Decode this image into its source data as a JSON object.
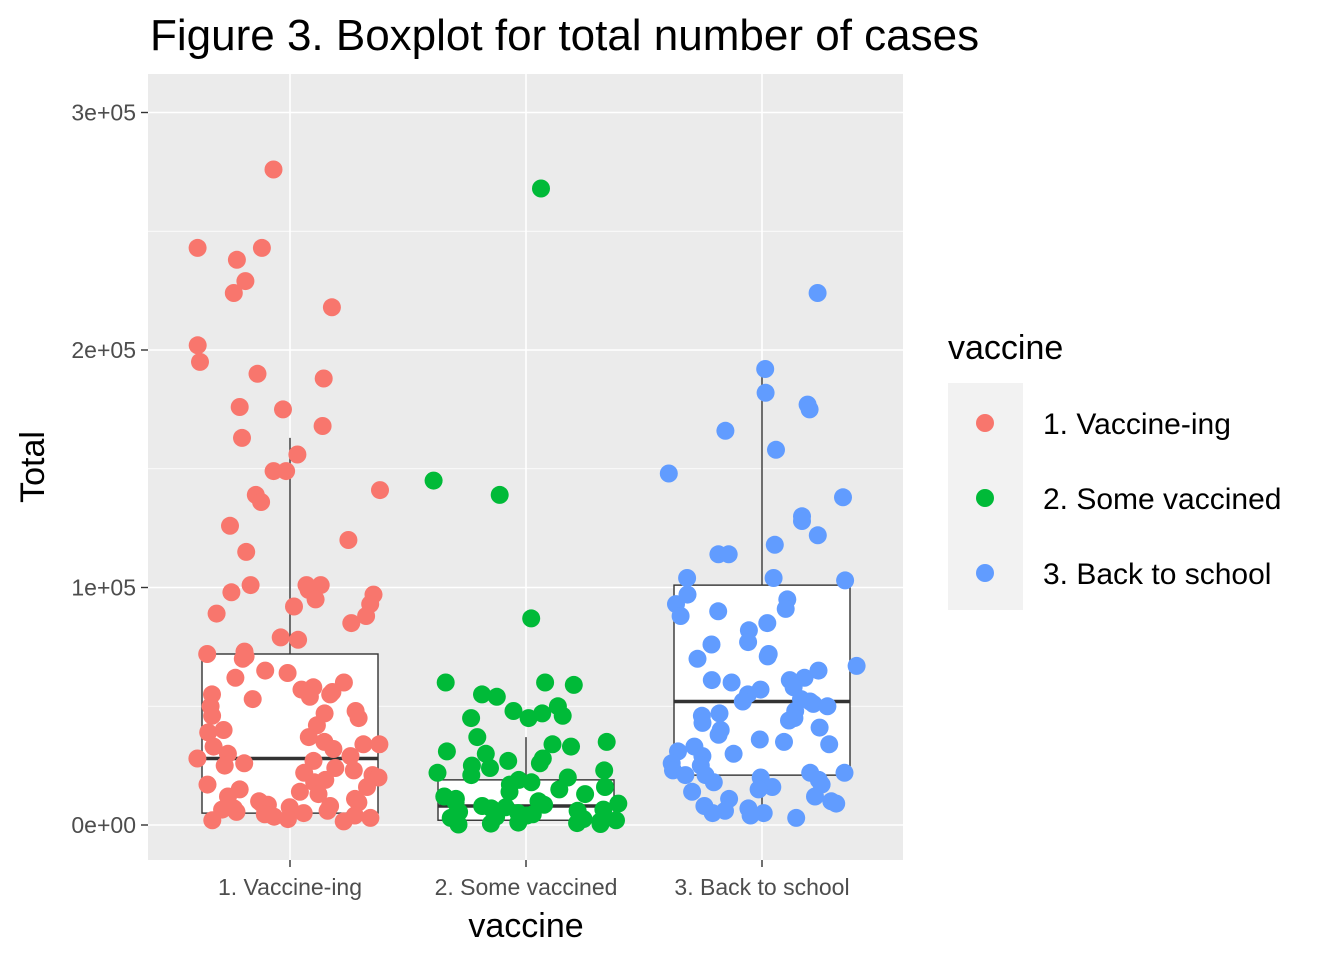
{
  "chart_data": {
    "type": "boxplot-jitter",
    "title": "Figure 3. Boxplot for total number of cases",
    "xlabel": "vaccine",
    "ylabel": "Total",
    "ylim": [
      -15000,
      300000
    ],
    "yticks": [
      0,
      100000,
      200000,
      300000
    ],
    "ytick_labels": [
      "0e+00",
      "1e+05",
      "2e+05",
      "3e+05"
    ],
    "categories": [
      "1. Vaccine-ing",
      "2. Some vaccined",
      "3. Back to school"
    ],
    "legend": {
      "title": "vaccine",
      "placement": "right",
      "entries": [
        "1. Vaccine-ing",
        "2. Some vaccined",
        "3. Back to school"
      ]
    },
    "colors": [
      "#F8766D",
      "#00BA38",
      "#619CFF"
    ],
    "background": "#EBEBEB",
    "grid": true,
    "boxes": [
      {
        "category": "1. Vaccine-ing",
        "lower_whisker": 0,
        "q1": 5000,
        "median": 28000,
        "q3": 72000,
        "upper_whisker": 163000
      },
      {
        "category": "2. Some vaccined",
        "lower_whisker": 0,
        "q1": 2000,
        "median": 8000,
        "q3": 19000,
        "upper_whisker": 37000
      },
      {
        "category": "3. Back to school",
        "lower_whisker": 4000,
        "q1": 21000,
        "median": 52000,
        "q3": 101000,
        "upper_whisker": 192000
      }
    ],
    "points": [
      {
        "category": "1. Vaccine-ing",
        "values": [
          276000,
          243000,
          243000,
          238000,
          229000,
          224000,
          218000,
          202000,
          195000,
          190000,
          188000,
          176000,
          175000,
          168000,
          163000,
          156000,
          149000,
          149000,
          141000,
          139000,
          136000,
          126000,
          120000,
          115000,
          101000,
          101000,
          101000,
          99000,
          98000,
          97000,
          95000,
          93000,
          92000,
          89000,
          88000,
          85000,
          79000,
          78000,
          73000,
          72000,
          71000,
          70000,
          65000,
          64000,
          62000,
          60000,
          58000,
          57000,
          56000,
          55000,
          55000,
          54000,
          53000,
          50000,
          48000,
          47000,
          46000,
          45000,
          42000,
          40000,
          39000,
          37000,
          35000,
          34000,
          34000,
          33000,
          32000,
          30000,
          29000,
          28000,
          27000,
          26000,
          25000,
          24000,
          23000,
          22000,
          21000,
          20000,
          19000,
          18000,
          17000,
          16000,
          15000,
          14000,
          13000,
          12000,
          11000,
          10000,
          9500,
          9000,
          8500,
          8000,
          7500,
          7000,
          6500,
          6000,
          5500,
          5000,
          4500,
          4000,
          3500,
          3000,
          2500,
          2000,
          1500
        ]
      },
      {
        "category": "2. Some vaccined",
        "values": [
          268000,
          145000,
          139000,
          87000,
          60000,
          60000,
          59000,
          55000,
          54000,
          50000,
          48000,
          47000,
          46000,
          45000,
          45000,
          37000,
          35000,
          34000,
          33000,
          31000,
          30000,
          28000,
          27000,
          26000,
          25000,
          24000,
          23000,
          22000,
          21000,
          20000,
          19000,
          18000,
          17000,
          16000,
          15000,
          14000,
          13000,
          12000,
          11000,
          10000,
          9500,
          9000,
          8500,
          8000,
          7500,
          7000,
          6500,
          6000,
          5500,
          5000,
          4500,
          4000,
          3500,
          3000,
          2500,
          2000,
          1500,
          1000,
          800,
          600,
          400,
          200
        ]
      },
      {
        "category": "3. Back to school",
        "values": [
          224000,
          192000,
          182000,
          177000,
          175000,
          166000,
          158000,
          148000,
          138000,
          130000,
          128000,
          122000,
          118000,
          114000,
          114000,
          104000,
          104000,
          103000,
          97000,
          95000,
          93000,
          91000,
          90000,
          88000,
          85000,
          82000,
          77000,
          76000,
          72000,
          71000,
          70000,
          67000,
          65000,
          62000,
          61000,
          61000,
          60000,
          58000,
          57000,
          55000,
          53000,
          52000,
          52000,
          51000,
          50000,
          48000,
          47000,
          46000,
          45000,
          44000,
          43000,
          41000,
          40000,
          38000,
          36000,
          35000,
          34000,
          33000,
          31000,
          30000,
          29000,
          26000,
          25000,
          23000,
          22000,
          22000,
          21000,
          21000,
          20000,
          19000,
          18000,
          17000,
          16000,
          15000,
          14000,
          12000,
          11000,
          10000,
          9000,
          8000,
          7000,
          6000,
          5000,
          5000,
          4000,
          3000
        ]
      }
    ]
  }
}
